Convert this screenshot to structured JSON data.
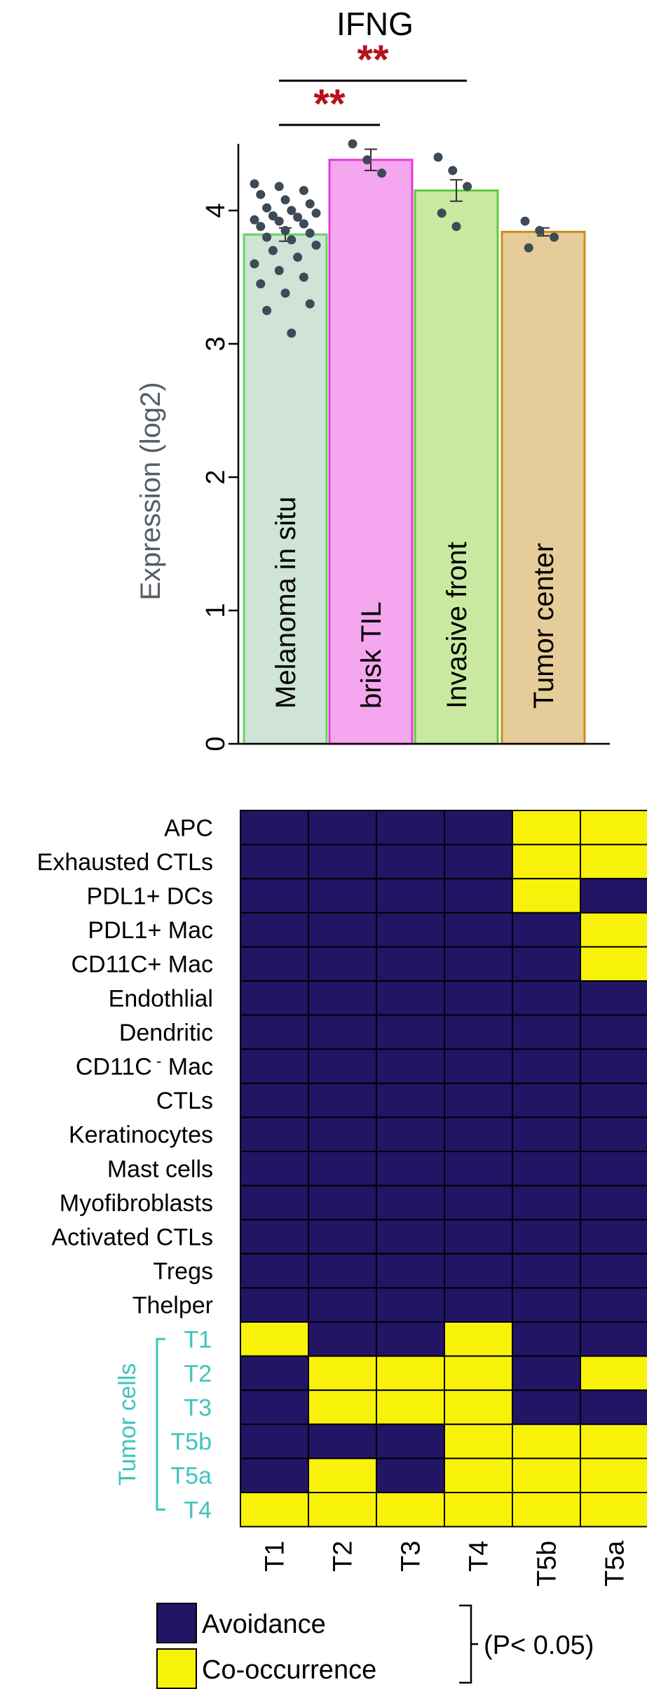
{
  "chart_data": [
    {
      "type": "bar",
      "title": "IFNG",
      "ylabel": "Expression (log2)",
      "ylim": [
        0,
        4.5
      ],
      "yticks": [
        "0",
        "1",
        "2",
        "3",
        "4"
      ],
      "categories": [
        "Melanoma in situ",
        "brisk TIL",
        "Invasive front",
        "Tumor center"
      ],
      "values": [
        3.82,
        4.38,
        4.15,
        3.84
      ],
      "errors": [
        0.05,
        0.08,
        0.08,
        0.03
      ],
      "colors": {
        "fills": [
          "#cfe3d6",
          "#f4a6ee",
          "#c9e9a0",
          "#e6cc98"
        ],
        "strokes": [
          "#5fd65f",
          "#e53ad9",
          "#60c940",
          "#c8901e"
        ],
        "points": "#3e4a56",
        "significance": "#b5121b"
      },
      "points": [
        [
          4.2,
          4.18,
          4.15,
          4.12,
          4.08,
          4.05,
          4.02,
          4.0,
          3.98,
          3.96,
          3.95,
          3.93,
          3.92,
          3.9,
          3.88,
          3.85,
          3.83,
          3.8,
          3.78,
          3.74,
          3.7,
          3.65,
          3.6,
          3.55,
          3.5,
          3.45,
          3.38,
          3.3,
          3.25,
          3.08
        ],
        [
          4.5,
          4.38,
          4.28
        ],
        [
          4.4,
          4.3,
          4.18,
          3.98,
          3.88
        ],
        [
          3.92,
          3.85,
          3.8,
          3.72
        ]
      ],
      "significance": [
        {
          "between": [
            "Melanoma in situ",
            "Invasive front"
          ],
          "label": "**"
        },
        {
          "between": [
            "Melanoma in situ",
            "brisk TIL"
          ],
          "label": "**"
        }
      ]
    },
    {
      "type": "heatmap",
      "rows": [
        "APC",
        "Exhausted CTLs",
        "PDL1+ DCs",
        "PDL1+ Mac",
        "CD11C+ Mac",
        "Endothlial",
        "Dendritic",
        "CD11C",
        "CTLs",
        "Keratinocytes",
        "Mast cells",
        "Myofibroblasts",
        "Activated CTLs",
        "Tregs",
        "Thelper",
        "T1",
        "T2",
        "T3",
        "T5b",
        "T5a",
        "T4"
      ],
      "columns": [
        "T1",
        "T2",
        "T3",
        "T4",
        "T5b",
        "T5a"
      ],
      "row_group": {
        "label": "Tumor cells",
        "rows": [
          "T1",
          "T2",
          "T3",
          "T5b",
          "T5a",
          "T4"
        ]
      },
      "cd11c_neg_suffix": "Mac",
      "values": [
        [
          0,
          0,
          0,
          0,
          1,
          1
        ],
        [
          0,
          0,
          0,
          0,
          1,
          1
        ],
        [
          0,
          0,
          0,
          0,
          1,
          0
        ],
        [
          0,
          0,
          0,
          0,
          0,
          1
        ],
        [
          0,
          0,
          0,
          0,
          0,
          1
        ],
        [
          0,
          0,
          0,
          0,
          0,
          0
        ],
        [
          0,
          0,
          0,
          0,
          0,
          0
        ],
        [
          0,
          0,
          0,
          0,
          0,
          0
        ],
        [
          0,
          0,
          0,
          0,
          0,
          0
        ],
        [
          0,
          0,
          0,
          0,
          0,
          0
        ],
        [
          0,
          0,
          0,
          0,
          0,
          0
        ],
        [
          0,
          0,
          0,
          0,
          0,
          0
        ],
        [
          0,
          0,
          0,
          0,
          0,
          0
        ],
        [
          0,
          0,
          0,
          0,
          0,
          0
        ],
        [
          0,
          0,
          0,
          0,
          0,
          0
        ],
        [
          1,
          0,
          0,
          1,
          0,
          0
        ],
        [
          0,
          1,
          1,
          1,
          0,
          1
        ],
        [
          0,
          1,
          1,
          1,
          0,
          0
        ],
        [
          0,
          0,
          0,
          1,
          1,
          1
        ],
        [
          0,
          1,
          0,
          1,
          1,
          1
        ],
        [
          1,
          1,
          1,
          1,
          1,
          1
        ]
      ],
      "colors": {
        "0": "#221566",
        "1": "#f8f20a",
        "group_label": "#3ec4bd"
      },
      "legend": {
        "items": [
          {
            "label": "Avoidance",
            "color": "#221566"
          },
          {
            "label": "Co-occurrence",
            "color": "#f8f20a"
          }
        ],
        "note": "(P< 0.05)"
      }
    }
  ]
}
